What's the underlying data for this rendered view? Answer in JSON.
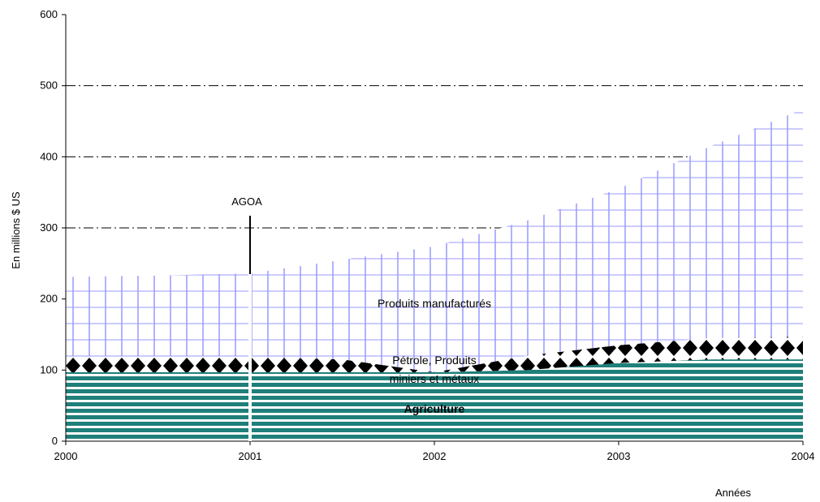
{
  "chart_data": {
    "type": "area",
    "stacked": true,
    "title": "",
    "xlabel": "Années",
    "ylabel": "En millions $ US",
    "xlim": [
      2000,
      2004
    ],
    "ylim": [
      0,
      600
    ],
    "x_ticks": [
      "2000",
      "2001",
      "2002",
      "2003",
      "2004"
    ],
    "y_ticks": [
      "0",
      "100",
      "200",
      "300",
      "400",
      "500",
      "600"
    ],
    "gridlines": [
      300,
      400,
      500
    ],
    "x": [
      2000,
      2000.5,
      2001,
      2001.5,
      2002,
      2002.5,
      2003,
      2003.5,
      2004
    ],
    "series": [
      {
        "name": "Agriculture",
        "values": [
          97,
          97,
          97,
          97,
          97,
          100,
          110,
          115,
          115
        ],
        "color": "#1f7f7a",
        "pattern": "horizontal-stripes"
      },
      {
        "name": "Pétrole, Produits miniers et métaux",
        "values": [
          22,
          22,
          22,
          18,
          0,
          20,
          25,
          30,
          32
        ],
        "color": "#000000",
        "pattern": "diamonds"
      },
      {
        "name": "Produits manufacturés",
        "values": [
          112,
          114,
          117,
          140,
          177,
          190,
          220,
          270,
          320
        ],
        "color": "#9999ff",
        "pattern": "grid"
      }
    ],
    "annotations": [
      {
        "text": "AGOA",
        "x": 2001
      }
    ],
    "labels": {
      "manuf": "Produits manufacturés",
      "petrole_1": "Pétrole, Produits",
      "petrole_2": "miniers et métaux",
      "agri": "Agriculture"
    }
  }
}
